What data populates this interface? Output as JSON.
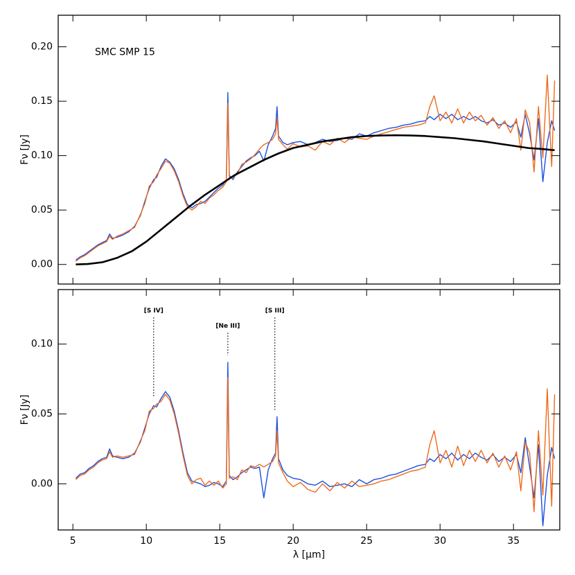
{
  "chart_data": [
    {
      "type": "line",
      "ylabel": "Fν [Jy]",
      "xlim": [
        4,
        38.15
      ],
      "xticks": [
        5,
        10,
        15,
        20,
        25,
        30,
        35
      ],
      "show_xtick_labels": false,
      "ylim": [
        -0.018,
        0.229
      ],
      "yticks": [
        {
          "value": 0,
          "label": "0.00"
        },
        {
          "value": 0.05,
          "label": "0.05"
        },
        {
          "value": 0.1,
          "label": "0.10"
        },
        {
          "value": 0.15,
          "label": "0.15"
        },
        {
          "value": 0.2,
          "label": "0.20"
        }
      ],
      "annotations": [
        {
          "text": "SMC SMP 15",
          "x": 6.5,
          "y": 0.195
        }
      ],
      "x": [
        5.2,
        5.5,
        5.8,
        6.1,
        6.4,
        6.7,
        7.0,
        7.3,
        7.5,
        7.7,
        8.0,
        8.4,
        8.8,
        9.2,
        9.6,
        9.9,
        10.2,
        10.5,
        10.7,
        11.0,
        11.3,
        11.6,
        11.9,
        12.2,
        12.5,
        12.8,
        13.1,
        13.4,
        13.7,
        14.0,
        14.3,
        14.6,
        14.9,
        15.2,
        15.45,
        15.55,
        15.65,
        15.9,
        16.2,
        16.5,
        16.8,
        17.1,
        17.4,
        17.7,
        18.0,
        18.3,
        18.6,
        18.8,
        18.9,
        19.0,
        19.3,
        19.6,
        20.0,
        20.5,
        21.0,
        21.5,
        22.0,
        22.5,
        23.0,
        23.5,
        24.0,
        24.5,
        25.0,
        25.5,
        26.0,
        26.5,
        27.0,
        27.5,
        28.0,
        28.5,
        29.0,
        29.3,
        29.6,
        30.0,
        30.4,
        30.8,
        31.2,
        31.6,
        32.0,
        32.4,
        32.8,
        33.2,
        33.6,
        34.0,
        34.4,
        34.8,
        35.2,
        35.5,
        35.8,
        36.1,
        36.4,
        36.7,
        37.0,
        37.3,
        37.6,
        37.8
      ],
      "series": [
        {
          "color": "#1a4fe0",
          "width": 1.4,
          "values": [
            0.004,
            0.007,
            0.009,
            0.012,
            0.015,
            0.018,
            0.02,
            0.022,
            0.028,
            0.024,
            0.025,
            0.027,
            0.03,
            0.035,
            0.045,
            0.058,
            0.07,
            0.078,
            0.08,
            0.09,
            0.097,
            0.094,
            0.088,
            0.078,
            0.065,
            0.055,
            0.052,
            0.055,
            0.056,
            0.058,
            0.062,
            0.066,
            0.07,
            0.073,
            0.078,
            0.158,
            0.082,
            0.078,
            0.085,
            0.09,
            0.095,
            0.098,
            0.1,
            0.104,
            0.095,
            0.11,
            0.118,
            0.125,
            0.145,
            0.118,
            0.112,
            0.11,
            0.112,
            0.113,
            0.11,
            0.112,
            0.115,
            0.113,
            0.114,
            0.116,
            0.115,
            0.12,
            0.118,
            0.121,
            0.123,
            0.125,
            0.126,
            0.128,
            0.129,
            0.131,
            0.132,
            0.136,
            0.133,
            0.138,
            0.134,
            0.138,
            0.133,
            0.136,
            0.133,
            0.136,
            0.132,
            0.13,
            0.133,
            0.128,
            0.13,
            0.126,
            0.131,
            0.117,
            0.138,
            0.12,
            0.096,
            0.134,
            0.076,
            0.112,
            0.132,
            0.123
          ]
        },
        {
          "color": "#ee6a1a",
          "width": 1.4,
          "values": [
            0.003,
            0.006,
            0.008,
            0.011,
            0.014,
            0.017,
            0.019,
            0.021,
            0.026,
            0.023,
            0.026,
            0.028,
            0.031,
            0.034,
            0.046,
            0.056,
            0.072,
            0.076,
            0.082,
            0.088,
            0.095,
            0.093,
            0.086,
            0.076,
            0.063,
            0.053,
            0.05,
            0.053,
            0.058,
            0.056,
            0.061,
            0.064,
            0.068,
            0.071,
            0.076,
            0.148,
            0.08,
            0.08,
            0.083,
            0.092,
            0.094,
            0.097,
            0.101,
            0.106,
            0.11,
            0.112,
            0.115,
            0.12,
            0.135,
            0.115,
            0.11,
            0.106,
            0.111,
            0.108,
            0.109,
            0.105,
            0.113,
            0.11,
            0.116,
            0.112,
            0.117,
            0.116,
            0.115,
            0.118,
            0.12,
            0.122,
            0.124,
            0.126,
            0.127,
            0.128,
            0.13,
            0.145,
            0.155,
            0.132,
            0.14,
            0.13,
            0.143,
            0.13,
            0.14,
            0.132,
            0.137,
            0.128,
            0.135,
            0.125,
            0.132,
            0.121,
            0.134,
            0.105,
            0.142,
            0.13,
            0.085,
            0.145,
            0.098,
            0.174,
            0.09,
            0.169
          ]
        },
        {
          "color": "#000000",
          "width": 2.6,
          "x": [
            5.2,
            6,
            7,
            8,
            9,
            10,
            11,
            12,
            13,
            14,
            15,
            16,
            17,
            18,
            19,
            20,
            21,
            22,
            23,
            24,
            25,
            26,
            27,
            28,
            29,
            30,
            31,
            32,
            33,
            34,
            35,
            36,
            37,
            37.8
          ],
          "values": [
            0.0,
            0.0004,
            0.002,
            0.006,
            0.012,
            0.021,
            0.032,
            0.043,
            0.054,
            0.064,
            0.073,
            0.082,
            0.089,
            0.096,
            0.102,
            0.107,
            0.11,
            0.113,
            0.115,
            0.117,
            0.118,
            0.1185,
            0.1187,
            0.1185,
            0.118,
            0.117,
            0.116,
            0.1145,
            0.113,
            0.111,
            0.109,
            0.107,
            0.106,
            0.105
          ]
        }
      ]
    },
    {
      "type": "line",
      "ylabel": "Fν [Jy]",
      "xlabel": "λ [μm]",
      "xlim": [
        4,
        38.15
      ],
      "xticks": [
        5,
        10,
        15,
        20,
        25,
        30,
        35
      ],
      "show_xtick_labels": true,
      "ylim": [
        -0.033,
        0.139
      ],
      "yticks": [
        {
          "value": 0,
          "label": "0.00"
        },
        {
          "value": 0.05,
          "label": "0.05"
        },
        {
          "value": 0.1,
          "label": "0.10"
        }
      ],
      "line_labels": [
        {
          "text": "[S IV]",
          "x": 10.5,
          "y": 0.124
        },
        {
          "text": "[Ne III]",
          "x": 15.55,
          "y": 0.113
        },
        {
          "text": "[S III]",
          "x": 18.75,
          "y": 0.124
        }
      ],
      "x": [
        5.2,
        5.5,
        5.8,
        6.1,
        6.4,
        6.7,
        7.0,
        7.3,
        7.5,
        7.7,
        8.0,
        8.4,
        8.8,
        9.2,
        9.6,
        9.9,
        10.2,
        10.5,
        10.7,
        11.0,
        11.3,
        11.6,
        11.9,
        12.2,
        12.5,
        12.8,
        13.1,
        13.4,
        13.7,
        14.0,
        14.3,
        14.6,
        14.9,
        15.2,
        15.45,
        15.55,
        15.65,
        15.9,
        16.2,
        16.5,
        16.8,
        17.1,
        17.4,
        17.7,
        18.0,
        18.3,
        18.6,
        18.8,
        18.9,
        19.0,
        19.3,
        19.6,
        20.0,
        20.5,
        21.0,
        21.5,
        22.0,
        22.5,
        23.0,
        23.5,
        24.0,
        24.5,
        25.0,
        25.5,
        26.0,
        26.5,
        27.0,
        27.5,
        28.0,
        28.5,
        29.0,
        29.3,
        29.6,
        30.0,
        30.4,
        30.8,
        31.2,
        31.6,
        32.0,
        32.4,
        32.8,
        33.2,
        33.6,
        34.0,
        34.4,
        34.8,
        35.2,
        35.5,
        35.8,
        36.1,
        36.4,
        36.7,
        37.0,
        37.3,
        37.6,
        37.8
      ],
      "series": [
        {
          "color": "#1a4fe0",
          "width": 1.4,
          "values": [
            0.004,
            0.007,
            0.008,
            0.011,
            0.013,
            0.016,
            0.018,
            0.019,
            0.025,
            0.02,
            0.019,
            0.018,
            0.019,
            0.022,
            0.03,
            0.04,
            0.05,
            0.056,
            0.055,
            0.061,
            0.066,
            0.062,
            0.052,
            0.038,
            0.022,
            0.008,
            0.002,
            0.001,
            0.0,
            -0.002,
            -0.001,
            0.001,
            0.0,
            -0.002,
            0.002,
            0.087,
            0.006,
            0.003,
            0.005,
            0.008,
            0.01,
            0.012,
            0.011,
            0.012,
            -0.01,
            0.01,
            0.018,
            0.022,
            0.048,
            0.018,
            0.01,
            0.006,
            0.004,
            0.003,
            0.0,
            -0.001,
            0.002,
            -0.002,
            -0.001,
            0.0,
            -0.002,
            0.003,
            0.0,
            0.003,
            0.004,
            0.006,
            0.007,
            0.009,
            0.011,
            0.013,
            0.014,
            0.018,
            0.016,
            0.021,
            0.018,
            0.022,
            0.017,
            0.021,
            0.018,
            0.022,
            0.019,
            0.017,
            0.021,
            0.016,
            0.019,
            0.016,
            0.021,
            0.008,
            0.033,
            0.012,
            -0.01,
            0.028,
            -0.03,
            0.006,
            0.026,
            0.018
          ]
        },
        {
          "color": "#ee6a1a",
          "width": 1.4,
          "values": [
            0.003,
            0.006,
            0.007,
            0.01,
            0.012,
            0.015,
            0.017,
            0.018,
            0.023,
            0.019,
            0.02,
            0.019,
            0.02,
            0.021,
            0.031,
            0.038,
            0.052,
            0.054,
            0.057,
            0.059,
            0.064,
            0.06,
            0.05,
            0.036,
            0.02,
            0.006,
            0.0,
            0.003,
            0.004,
            -0.001,
            0.002,
            -0.001,
            0.002,
            -0.003,
            0.0,
            0.076,
            0.004,
            0.005,
            0.003,
            0.01,
            0.008,
            0.013,
            0.012,
            0.014,
            0.012,
            0.014,
            0.016,
            0.02,
            0.038,
            0.015,
            0.008,
            0.002,
            -0.002,
            0.001,
            -0.004,
            -0.006,
            0.0,
            -0.005,
            0.001,
            -0.003,
            0.002,
            -0.002,
            -0.001,
            0.0,
            0.002,
            0.003,
            0.005,
            0.007,
            0.009,
            0.01,
            0.012,
            0.028,
            0.038,
            0.015,
            0.024,
            0.012,
            0.027,
            0.013,
            0.024,
            0.016,
            0.024,
            0.015,
            0.022,
            0.012,
            0.02,
            0.01,
            0.023,
            -0.005,
            0.03,
            0.022,
            -0.02,
            0.038,
            -0.008,
            0.068,
            -0.016,
            0.064
          ]
        }
      ]
    }
  ]
}
